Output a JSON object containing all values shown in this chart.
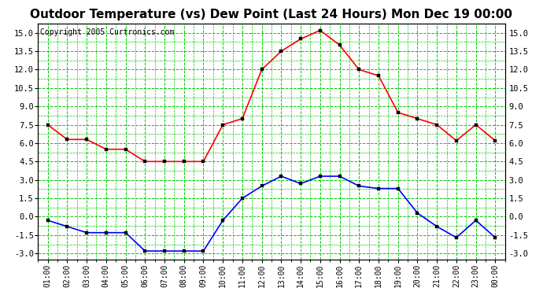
{
  "title": "Outdoor Temperature (vs) Dew Point (Last 24 Hours) Mon Dec 19 00:00",
  "copyright": "Copyright 2005 Curtronics.com",
  "x_labels": [
    "01:00",
    "02:00",
    "03:00",
    "04:00",
    "05:00",
    "06:00",
    "07:00",
    "08:00",
    "09:00",
    "10:00",
    "11:00",
    "12:00",
    "13:00",
    "14:00",
    "15:00",
    "16:00",
    "17:00",
    "18:00",
    "19:00",
    "20:00",
    "21:00",
    "22:00",
    "23:00",
    "00:00"
  ],
  "temp_values": [
    7.5,
    6.3,
    6.3,
    5.5,
    5.5,
    4.5,
    4.5,
    4.5,
    4.5,
    7.5,
    8.0,
    12.0,
    13.5,
    14.5,
    15.2,
    14.0,
    12.0,
    11.5,
    8.5,
    8.0,
    7.5,
    6.2,
    7.5,
    6.2
  ],
  "dew_values": [
    -0.3,
    -0.8,
    -1.3,
    -1.3,
    -1.3,
    -2.8,
    -2.8,
    -2.8,
    -2.8,
    -0.3,
    1.5,
    2.5,
    3.3,
    2.7,
    3.3,
    3.3,
    2.5,
    2.3,
    2.3,
    0.3,
    -0.8,
    -1.7,
    -0.3,
    -1.7
  ],
  "temp_color": "#ff0000",
  "dew_color": "#0000ff",
  "bg_color": "#ffffff",
  "plot_bg_color": "#ffffff",
  "grid_color": "#00cc00",
  "ylim": [
    -3.5,
    15.75
  ],
  "yticks": [
    -3.0,
    -1.5,
    0.0,
    1.5,
    3.0,
    4.5,
    6.0,
    7.5,
    9.0,
    10.5,
    12.0,
    13.5,
    15.0
  ],
  "title_fontsize": 11,
  "copyright_fontsize": 7,
  "marker": "s",
  "marker_size": 3.5
}
